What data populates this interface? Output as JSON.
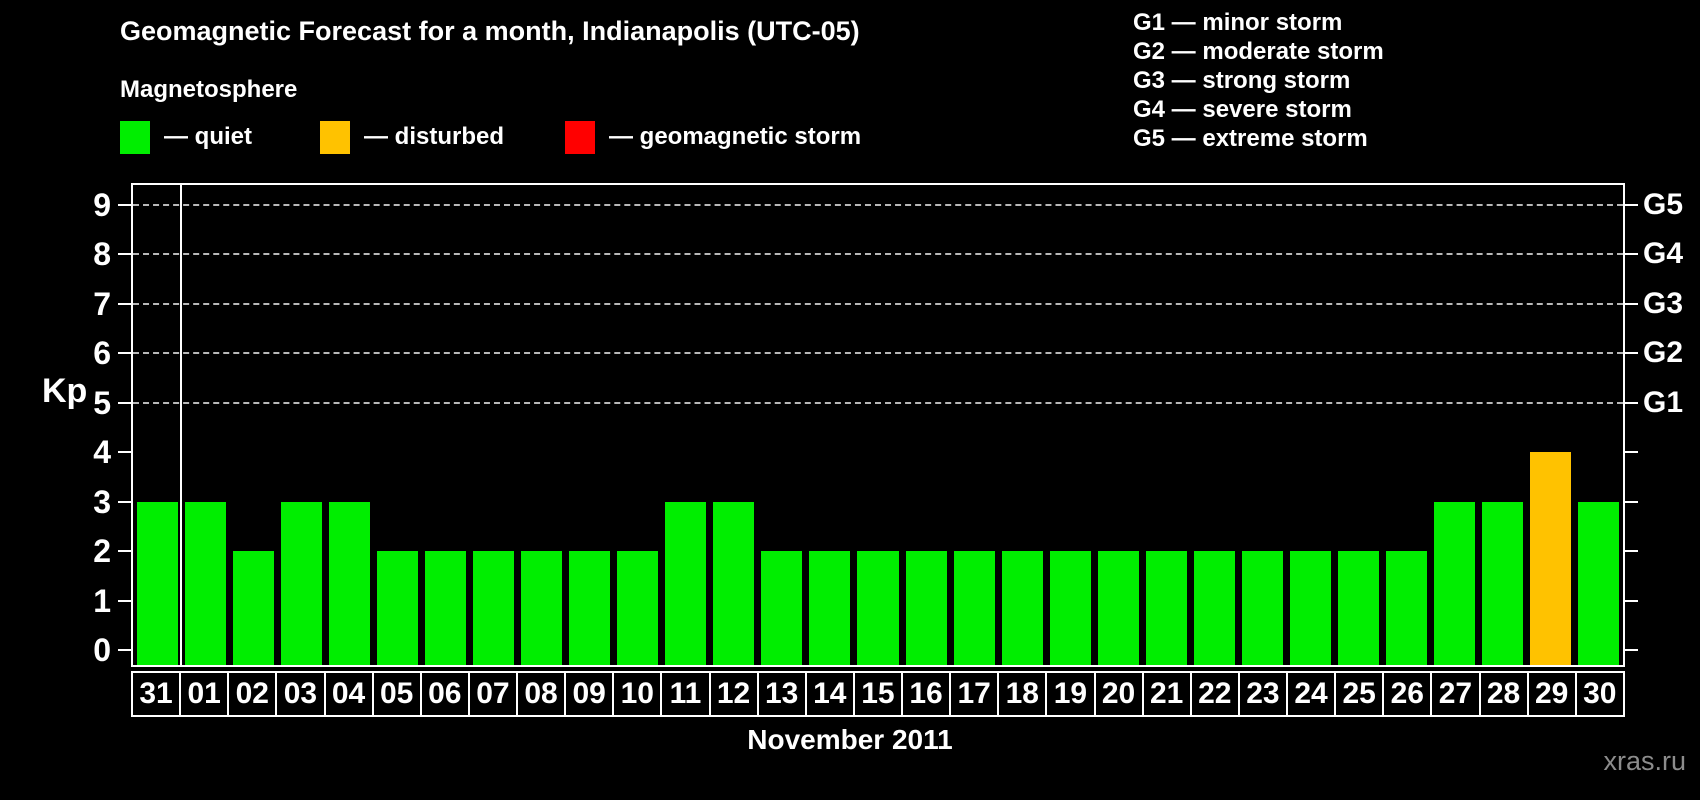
{
  "title": "Geomagnetic Forecast for a month, Indianapolis (UTC-05)",
  "legend": {
    "heading": "Magnetosphere",
    "items": [
      {
        "status": "quiet",
        "color": "#00ee00",
        "label": "— quiet"
      },
      {
        "status": "disturbed",
        "color": "#ffc200",
        "label": "— disturbed"
      },
      {
        "status": "storm",
        "color": "#ff0000",
        "label": "— geomagnetic storm"
      }
    ]
  },
  "g_scale_legend": [
    "G1 — minor storm",
    "G2 — moderate storm",
    "G3 — strong storm",
    "G4 — severe storm",
    "G5 — extreme storm"
  ],
  "watermark": "xras.ru",
  "chart_data": {
    "type": "bar",
    "title": "Geomagnetic Forecast for a month, Indianapolis (UTC-05)",
    "xlabel": "November 2011",
    "ylabel": "Kp",
    "ylim": [
      0,
      9
    ],
    "grid": "horizontal dashed lines at Kp 5-9 only",
    "legend_position": "top",
    "kp_ticks": [
      0,
      1,
      2,
      3,
      4,
      5,
      6,
      7,
      8,
      9
    ],
    "right_axis_labels": [
      {
        "kp": 5,
        "label": "G1"
      },
      {
        "kp": 6,
        "label": "G2"
      },
      {
        "kp": 7,
        "label": "G3"
      },
      {
        "kp": 8,
        "label": "G4"
      },
      {
        "kp": 9,
        "label": "G5"
      }
    ],
    "categories": [
      "31",
      "01",
      "02",
      "03",
      "04",
      "05",
      "06",
      "07",
      "08",
      "09",
      "10",
      "11",
      "12",
      "13",
      "14",
      "15",
      "16",
      "17",
      "18",
      "19",
      "20",
      "21",
      "22",
      "23",
      "24",
      "25",
      "26",
      "27",
      "28",
      "29",
      "30"
    ],
    "values": [
      3,
      3,
      2,
      3,
      3,
      2,
      2,
      2,
      2,
      2,
      2,
      3,
      3,
      2,
      2,
      2,
      2,
      2,
      2,
      2,
      2,
      2,
      2,
      2,
      2,
      2,
      2,
      3,
      3,
      4,
      3
    ],
    "statuses": [
      "quiet",
      "quiet",
      "quiet",
      "quiet",
      "quiet",
      "quiet",
      "quiet",
      "quiet",
      "quiet",
      "quiet",
      "quiet",
      "quiet",
      "quiet",
      "quiet",
      "quiet",
      "quiet",
      "quiet",
      "quiet",
      "quiet",
      "quiet",
      "quiet",
      "quiet",
      "quiet",
      "quiet",
      "quiet",
      "quiet",
      "quiet",
      "quiet",
      "quiet",
      "disturbed",
      "quiet"
    ],
    "separator_after_index": 0,
    "status_colors": {
      "quiet": "#00ee00",
      "disturbed": "#ffc200",
      "storm": "#ff0000"
    }
  }
}
